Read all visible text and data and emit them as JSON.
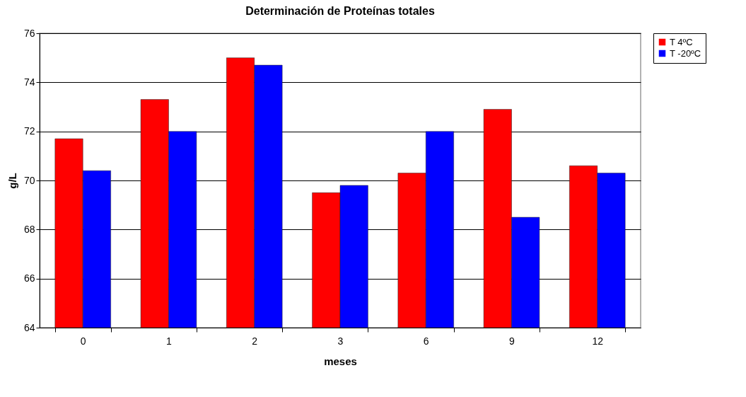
{
  "chart_data": {
    "type": "bar",
    "title": "Determinación de Proteínas totales",
    "xlabel": "meses",
    "ylabel": "g/L",
    "categories": [
      "0",
      "1",
      "2",
      "3",
      "6",
      "9",
      "12"
    ],
    "series": [
      {
        "name": "T 4ºC",
        "color": "#ff0000",
        "values": [
          71.7,
          73.3,
          75.0,
          69.5,
          70.3,
          72.9,
          70.6
        ]
      },
      {
        "name": "T -20ºC",
        "color": "#0000ff",
        "values": [
          70.4,
          72.0,
          74.7,
          69.8,
          72.0,
          68.5,
          70.3
        ]
      }
    ],
    "ylim": [
      64,
      76
    ],
    "yticks": [
      64,
      66,
      68,
      70,
      72,
      74,
      76
    ],
    "grid": "y",
    "legend": "right"
  }
}
